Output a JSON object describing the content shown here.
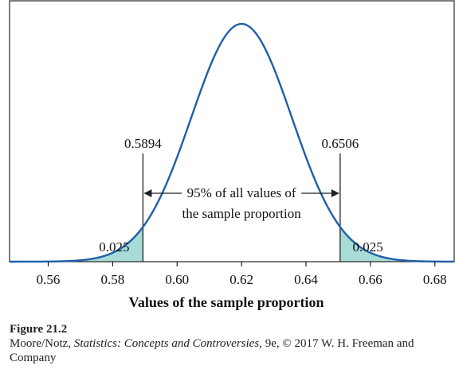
{
  "chart_data": {
    "type": "line",
    "xlabel": "Values of the sample proportion",
    "xlim": [
      0.548,
      0.686
    ],
    "ylim": [
      0,
      1
    ],
    "x_ticks": [
      "0.56",
      "0.58",
      "0.60",
      "0.62",
      "0.64",
      "0.66",
      "0.68"
    ],
    "x_tick_values": [
      0.56,
      0.58,
      0.6,
      0.62,
      0.64,
      0.66,
      0.68
    ],
    "distribution": {
      "mean": 0.62,
      "sd": 0.0156
    },
    "cutoffs": [
      {
        "value": 0.5894,
        "label": "0.5894"
      },
      {
        "value": 0.6506,
        "label": "0.6506"
      }
    ],
    "tail_areas": [
      {
        "side": "left",
        "label": "0.025"
      },
      {
        "side": "right",
        "label": "0.025"
      }
    ],
    "annotation": [
      "95% of all values of",
      "the sample proportion"
    ],
    "grid": false,
    "curve_color": "#1f5fa8",
    "shade_color": "#a8dcd8"
  },
  "caption": {
    "title": "Figure 21.2",
    "source_author": "Moore/Notz, ",
    "source_book": "Statistics: Concepts and Controversies",
    "source_rest": ", 9e, © 2017 W. H. Freeman and Company"
  }
}
